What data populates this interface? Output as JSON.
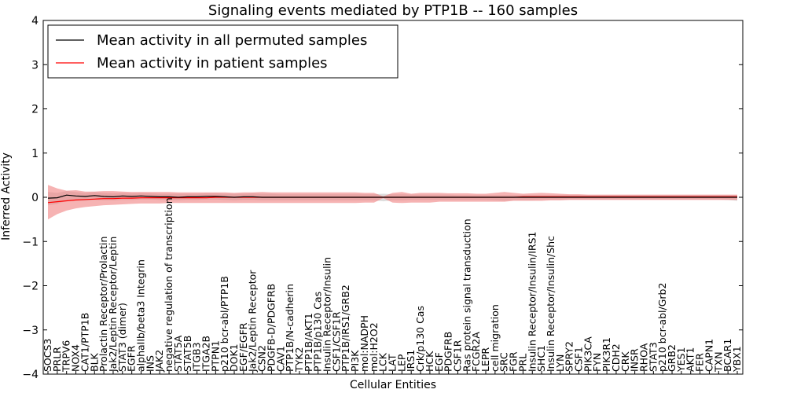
{
  "chart_data": {
    "type": "line",
    "title": "Signaling events mediated by PTP1B -- 160 samples",
    "xlabel": "Cellular Entities",
    "ylabel": "Inferred Activity",
    "ylim": [
      -4,
      4
    ],
    "yticks": [
      4,
      3,
      2,
      1,
      0,
      -1,
      -2,
      -3,
      -4
    ],
    "ytick_labels": [
      "4",
      "3",
      "2",
      "1",
      "0",
      "−1",
      "−2",
      "−3",
      "−4"
    ],
    "grid": false,
    "legend_position": "top-left",
    "legend": [
      {
        "label": "Mean activity in all permuted samples",
        "color": "#000000"
      },
      {
        "label": "Mean activity in patient samples",
        "color": "#ff0000"
      }
    ],
    "colors": {
      "permuted": "#000000",
      "patient": "#ff0000",
      "patient_band": "#f08080",
      "permuted_band": "#b4b4b4"
    },
    "categories": [
      "SOCS3",
      "PRLR",
      "TRPV6",
      "NOX4",
      "CAT1/PTP1B",
      "BLK",
      "Prolactin Receptor/Prolactin",
      "Jak2/Leptin Receptor/Leptin",
      "STAT3 (dimer)",
      "EGFR",
      "alphaIIb/beta3 Integrin",
      "INS",
      "JAK2",
      "negative regulation of transcription",
      "STAT5A",
      "STAT5B",
      "ITGB3",
      "ITGA2B",
      "PTPN1",
      "p210 bcr-abl/PTP1B",
      "DOK1",
      "EGF/EGFR",
      "Jak2/Leptin Receptor",
      "CSN2",
      "PDGFB-D/PDGFRB",
      "CAV1",
      "PTP1B/N-cadherin",
      "TYK2",
      "PTP1B/AKT1",
      "PTP1B/p130 Cas",
      "Insulin Receptor/Insulin",
      "CSF1/CSF1R",
      "PTP1B/IRS1/GRB2",
      "PI3K",
      "mol:NADPH",
      "mol:H2O2",
      "LCK",
      "LAT",
      "LEP",
      "IRS1",
      "Crk/p130 Cas",
      "HCK",
      "EGF",
      "PDGFRB",
      "CSF1R",
      "Ras protein signal transduction",
      "FCGR2A",
      "LEPR",
      "cell migration",
      "SRC",
      "FGR",
      "PRL",
      "Insulin Receptor/Insulin/IRS1",
      "SHC1",
      "Insulin Receptor/Insulin/Shc",
      "LYN",
      "SPRY2",
      "CSF1",
      "PIK3CA",
      "FYN",
      "PIK3R1",
      "CDH2",
      "CRK",
      "INSR",
      "RHOA",
      "STAT3",
      "p210 bcr-abl/Grb2",
      "GRB2",
      "YES1",
      "AKT1",
      "FER",
      "CAPN1",
      "TXN",
      "BCAR1",
      "YBX1"
    ],
    "series": [
      {
        "name": "Mean activity in all permuted samples",
        "values": [
          -0.02,
          -0.01,
          0.05,
          0.03,
          0.02,
          0.04,
          0.02,
          0.01,
          0.03,
          0.02,
          0.03,
          0.02,
          0.01,
          0.01,
          0.0,
          0.01,
          0.01,
          0.02,
          0.02,
          0.01,
          0.0,
          0.01,
          0.01,
          0.0,
          0.0,
          0.0,
          0.0,
          0.0,
          0.0,
          0.0,
          0.0,
          0.0,
          0.0,
          0.0,
          0.0,
          0.0,
          0.0,
          0.0,
          0.0,
          0.0,
          0.0,
          0.0,
          0.0,
          0.0,
          0.0,
          0.0,
          0.0,
          0.0,
          0.0,
          0.0,
          0.0,
          0.0,
          0.0,
          0.0,
          0.0,
          0.0,
          0.0,
          0.0,
          0.0,
          0.0,
          0.0,
          0.0,
          0.0,
          0.0,
          0.0,
          0.0,
          0.0,
          0.0,
          0.0,
          0.0,
          0.0,
          0.0,
          0.0,
          0.0,
          0.0
        ],
        "band_upper": [
          0.12,
          0.1,
          0.14,
          0.12,
          0.1,
          0.12,
          0.1,
          0.09,
          0.1,
          0.09,
          0.1,
          0.09,
          0.08,
          0.08,
          0.08,
          0.08,
          0.08,
          0.09,
          0.09,
          0.08,
          0.08,
          0.08,
          0.09,
          0.08,
          0.08,
          0.07,
          0.07,
          0.07,
          0.07,
          0.07,
          0.07,
          0.07,
          0.07,
          0.07,
          0.07,
          0.07,
          0.08,
          0.07,
          0.07,
          0.06,
          0.06,
          0.06,
          0.06,
          0.06,
          0.05,
          0.05,
          0.05,
          0.05,
          0.05,
          0.05,
          0.05,
          0.05,
          0.05,
          0.05,
          0.05,
          0.05,
          0.05,
          0.05,
          0.05,
          0.05,
          0.05,
          0.05,
          0.05,
          0.05,
          0.05,
          0.05,
          0.05,
          0.05,
          0.05,
          0.05,
          0.05,
          0.05,
          0.05,
          0.05,
          0.05
        ],
        "band_lower": [
          -0.18,
          -0.15,
          -0.08,
          -0.08,
          -0.08,
          -0.06,
          -0.07,
          -0.07,
          -0.06,
          -0.06,
          -0.05,
          -0.05,
          -0.06,
          -0.06,
          -0.07,
          -0.06,
          -0.06,
          -0.05,
          -0.05,
          -0.06,
          -0.07,
          -0.06,
          -0.06,
          -0.07,
          -0.07,
          -0.07,
          -0.07,
          -0.07,
          -0.07,
          -0.07,
          -0.07,
          -0.07,
          -0.07,
          -0.07,
          -0.07,
          -0.07,
          -0.09,
          -0.07,
          -0.07,
          -0.06,
          -0.06,
          -0.06,
          -0.06,
          -0.06,
          -0.06,
          -0.06,
          -0.06,
          -0.06,
          -0.07,
          -0.08,
          -0.06,
          -0.06,
          -0.06,
          -0.05,
          -0.05,
          -0.05,
          -0.05,
          -0.05,
          -0.05,
          -0.05,
          -0.05,
          -0.05,
          -0.05,
          -0.05,
          -0.05,
          -0.05,
          -0.05,
          -0.05,
          -0.05,
          -0.05,
          -0.05,
          -0.05,
          -0.05,
          -0.06,
          -0.08
        ]
      },
      {
        "name": "Mean activity in patient samples",
        "values": [
          -0.12,
          -0.1,
          -0.08,
          -0.06,
          -0.05,
          -0.04,
          -0.03,
          -0.03,
          -0.02,
          -0.02,
          -0.01,
          -0.01,
          -0.01,
          -0.01,
          -0.01,
          -0.01,
          -0.01,
          -0.01,
          0.0,
          0.0,
          0.0,
          0.0,
          0.0,
          0.0,
          0.0,
          0.0,
          0.0,
          0.0,
          0.0,
          0.0,
          0.0,
          0.0,
          0.0,
          0.0,
          0.0,
          0.0,
          0.0,
          0.0,
          0.0,
          0.0,
          0.0,
          0.0,
          0.0,
          0.0,
          0.0,
          0.0,
          0.0,
          0.0,
          0.0,
          0.0,
          0.0,
          0.01,
          0.01,
          0.01,
          0.01,
          0.01,
          0.01,
          0.01,
          0.01,
          0.01,
          0.01,
          0.01,
          0.01,
          0.01,
          0.01,
          0.01,
          0.01,
          0.01,
          0.01,
          0.01,
          0.01,
          0.01,
          0.01,
          0.01,
          0.01
        ],
        "band_upper": [
          0.28,
          0.2,
          0.15,
          0.16,
          0.13,
          0.13,
          0.14,
          0.14,
          0.13,
          0.12,
          0.12,
          0.12,
          0.12,
          0.12,
          0.11,
          0.11,
          0.11,
          0.11,
          0.11,
          0.11,
          0.1,
          0.11,
          0.11,
          0.12,
          0.11,
          0.11,
          0.11,
          0.11,
          0.11,
          0.11,
          0.11,
          0.11,
          0.11,
          0.11,
          0.1,
          0.1,
          0.02,
          0.1,
          0.12,
          0.08,
          0.1,
          0.1,
          0.1,
          0.09,
          0.09,
          0.09,
          0.08,
          0.08,
          0.1,
          0.12,
          0.1,
          0.08,
          0.09,
          0.1,
          0.09,
          0.08,
          0.07,
          0.07,
          0.06,
          0.06,
          0.06,
          0.06,
          0.06,
          0.06,
          0.06,
          0.06,
          0.06,
          0.06,
          0.06,
          0.06,
          0.06,
          0.06,
          0.06,
          0.06,
          0.06
        ],
        "band_lower": [
          -0.5,
          -0.38,
          -0.3,
          -0.25,
          -0.22,
          -0.2,
          -0.18,
          -0.17,
          -0.16,
          -0.15,
          -0.14,
          -0.14,
          -0.14,
          -0.13,
          -0.13,
          -0.13,
          -0.13,
          -0.13,
          -0.13,
          -0.13,
          -0.13,
          -0.13,
          -0.13,
          -0.13,
          -0.13,
          -0.13,
          -0.13,
          -0.13,
          -0.13,
          -0.13,
          -0.13,
          -0.13,
          -0.13,
          -0.13,
          -0.12,
          -0.12,
          -0.02,
          -0.12,
          -0.13,
          -0.12,
          -0.12,
          -0.12,
          -0.1,
          -0.1,
          -0.1,
          -0.1,
          -0.1,
          -0.1,
          -0.1,
          -0.1,
          -0.08,
          -0.08,
          -0.08,
          -0.08,
          -0.07,
          -0.07,
          -0.06,
          -0.06,
          -0.06,
          -0.06,
          -0.06,
          -0.06,
          -0.06,
          -0.06,
          -0.06,
          -0.06,
          -0.06,
          -0.06,
          -0.06,
          -0.06,
          -0.06,
          -0.06,
          -0.06,
          -0.06,
          -0.06
        ]
      }
    ]
  }
}
